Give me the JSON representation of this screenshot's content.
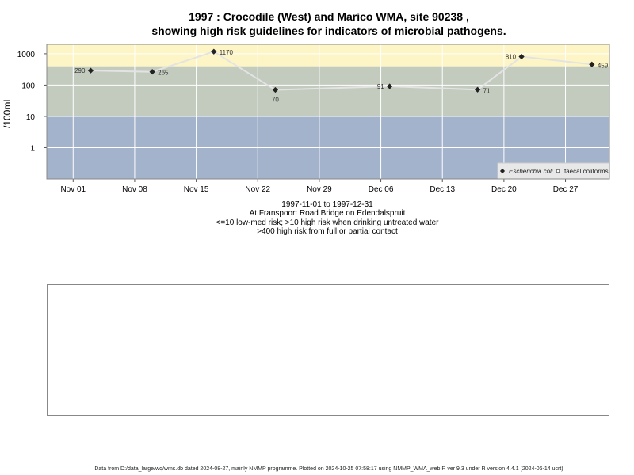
{
  "title": {
    "line1": "1997 : Crocodile (West) and Marico WMA, site 90238 ,",
    "line2": "showing high risk guidelines for indicators of microbial pathogens."
  },
  "subtitle": {
    "date_range": "1997-11-01 to 1997-12-31",
    "location": "At Franspoort Road Bridge on Edendalspruit",
    "risk_note_1": "<=10 low-med risk; >10 high risk when drinking untreated water",
    "risk_note_2": ">400 high risk from full or partial contact"
  },
  "footer": "Data from D:/data_large/wq/wms.db dated 2024-08-27, mainly NMMP programme. Plotted on 2024-10-25 07:58:17 using NMMP_WMA_web.R ver 9.3 under R version 4.4.1 (2024-06-14 ucrt)",
  "colors": {
    "band_low": "#a3b3cb",
    "band_mid": "#c3cbbf",
    "band_high": "#fdf5c5",
    "grid": "#ffffff",
    "series_line": "#e3e3e3",
    "point": "#222222"
  },
  "chart_data": {
    "type": "line",
    "ylabel": "/100mL",
    "xlabel": "",
    "y_scale": "log10",
    "ylim": [
      0.1,
      2000
    ],
    "xlim": [
      "1997-10-29",
      "1998-01-01"
    ],
    "y_ticks": [
      {
        "value": 1,
        "label": "1"
      },
      {
        "value": 10,
        "label": "10"
      },
      {
        "value": 100,
        "label": "100"
      },
      {
        "value": 1000,
        "label": "1000"
      }
    ],
    "x_ticks": [
      {
        "date": "1997-11-01",
        "label": "Nov 01"
      },
      {
        "date": "1997-11-08",
        "label": "Nov 08"
      },
      {
        "date": "1997-11-15",
        "label": "Nov 15"
      },
      {
        "date": "1997-11-22",
        "label": "Nov 22"
      },
      {
        "date": "1997-11-29",
        "label": "Nov 29"
      },
      {
        "date": "1997-12-06",
        "label": "Dec 06"
      },
      {
        "date": "1997-12-13",
        "label": "Dec 13"
      },
      {
        "date": "1997-12-20",
        "label": "Dec 20"
      },
      {
        "date": "1997-12-27",
        "label": "Dec 27"
      }
    ],
    "bands": [
      {
        "from": 0.1,
        "to": 10,
        "color": "#a3b3cb"
      },
      {
        "from": 10,
        "to": 400,
        "color": "#c3cbbf"
      },
      {
        "from": 400,
        "to": 2000,
        "color": "#fdf5c5"
      }
    ],
    "grid": true,
    "legend_position": "bottom-right",
    "legend": [
      {
        "name": "Escherichia coli",
        "marker": "filled-diamond",
        "italic": true
      },
      {
        "name": "faecal coliforms",
        "marker": "open-diamond",
        "italic": false
      }
    ],
    "series": [
      {
        "name": "Escherichia coli",
        "points": [
          {
            "x": "1997-11-03",
            "y": 290,
            "label": "290",
            "label_side": "left"
          },
          {
            "x": "1997-11-10",
            "y": 265,
            "label": "265",
            "label_side": "right"
          },
          {
            "x": "1997-11-17",
            "y": 1170,
            "label": "1170",
            "label_side": "right"
          },
          {
            "x": "1997-11-24",
            "y": 70,
            "label": "70",
            "label_side": "below"
          },
          {
            "x": "1997-12-07",
            "y": 91,
            "label": "91",
            "label_side": "left"
          },
          {
            "x": "1997-12-17",
            "y": 71,
            "label": "71",
            "label_side": "right"
          },
          {
            "x": "1997-12-22",
            "y": 810,
            "label": "810",
            "label_side": "left"
          },
          {
            "x": "1997-12-30",
            "y": 459,
            "label": "459",
            "label_side": "right"
          }
        ]
      }
    ]
  }
}
